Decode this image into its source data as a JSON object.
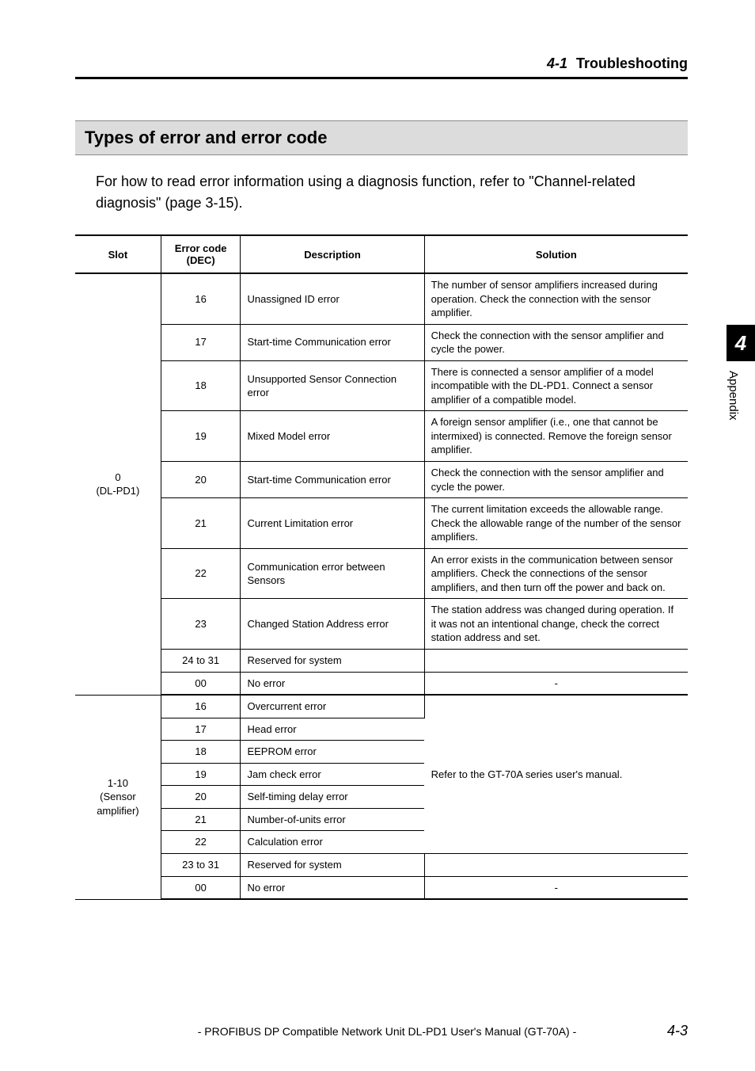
{
  "header": {
    "number": "4-1",
    "title": "Troubleshooting"
  },
  "band_title": "Types of error and error code",
  "intro": "For how to read error information using a diagnosis function, refer to \"Channel-related diagnosis\" (page 3-15).",
  "table": {
    "columns": [
      "Slot",
      "Error code (DEC)",
      "Description",
      "Solution"
    ],
    "groups": [
      {
        "slot": "0\n(DL-PD1)",
        "rows": [
          {
            "code": "16",
            "desc": "Unassigned ID error",
            "sol": "The number of sensor amplifiers increased during operation. Check the connection with the sensor amplifier."
          },
          {
            "code": "17",
            "desc": "Start-time Communication error",
            "sol": "Check the connection with the sensor amplifier and cycle the power."
          },
          {
            "code": "18",
            "desc": "Unsupported Sensor Connection error",
            "sol": "There is connected a sensor amplifier of a model incompatible with the DL-PD1. Connect a sensor amplifier of a compatible model."
          },
          {
            "code": "19",
            "desc": "Mixed Model error",
            "sol": "A foreign sensor amplifier (i.e., one that cannot be intermixed) is connected. Remove the foreign sensor amplifier."
          },
          {
            "code": "20",
            "desc": "Start-time Communication error",
            "sol": "Check the connection with the sensor amplifier and cycle the power."
          },
          {
            "code": "21",
            "desc": "Current Limitation error",
            "sol": "The current limitation exceeds the allowable range. Check the allowable range of the number of the sensor amplifiers."
          },
          {
            "code": "22",
            "desc": "Communication error between Sensors",
            "sol": "An error exists in the communication between sensor amplifiers. Check the connections of the sensor amplifiers, and then turn off the power and back on."
          },
          {
            "code": "23",
            "desc": "Changed Station Address error",
            "sol": "The station address was changed during operation. If it was not an intentional change, check the correct station address and set."
          },
          {
            "code": "24 to 31",
            "desc": "Reserved for system",
            "sol": ""
          },
          {
            "code": "00",
            "desc": "No error",
            "sol": "-"
          }
        ]
      },
      {
        "slot": "1-10\n(Sensor amplifier)",
        "merged_solution": "Refer to the GT-70A series user's manual.",
        "rows": [
          {
            "code": "16",
            "desc": "Overcurrent error"
          },
          {
            "code": "17",
            "desc": "Head error"
          },
          {
            "code": "18",
            "desc": "EEPROM error"
          },
          {
            "code": "19",
            "desc": "Jam check error"
          },
          {
            "code": "20",
            "desc": "Self-timing delay error"
          },
          {
            "code": "21",
            "desc": "Number-of-units error"
          },
          {
            "code": "22",
            "desc": "Calculation error"
          },
          {
            "code": "23 to 31",
            "desc": "Reserved for system",
            "sol": ""
          },
          {
            "code": "00",
            "desc": "No error",
            "sol": "-"
          }
        ]
      }
    ]
  },
  "sidebar": {
    "chapter": "4",
    "label": "Appendix"
  },
  "footer": {
    "text": "- PROFIBUS DP Compatible Network Unit DL-PD1 User's Manual (GT-70A) -",
    "page": "4-3"
  }
}
